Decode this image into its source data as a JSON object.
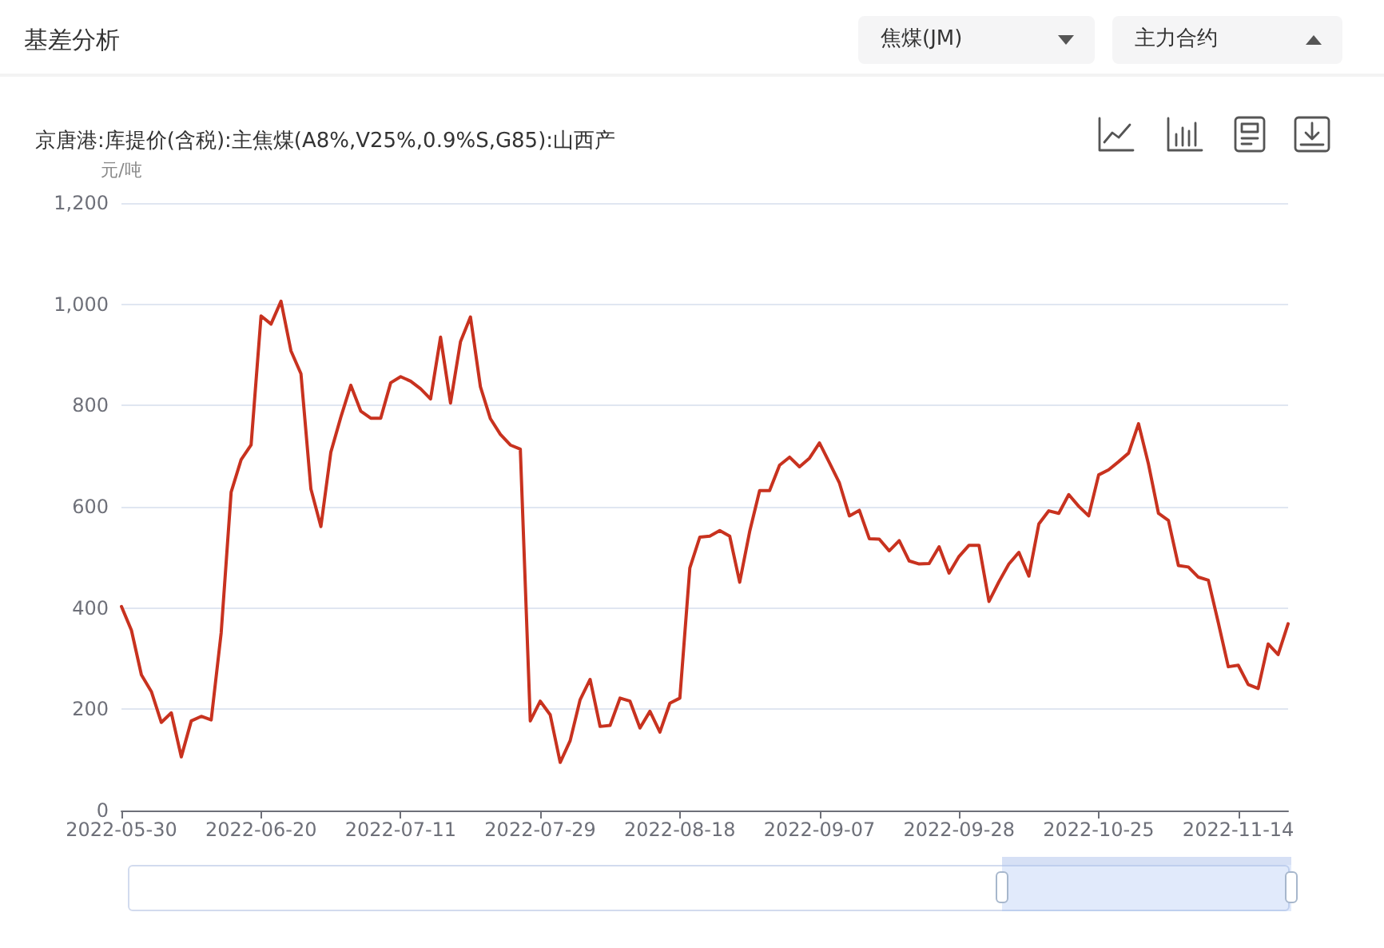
{
  "chart_data": {
    "type": "line",
    "title": "基差分析",
    "subtitle": "京唐港:库提价(含税):主焦煤(A8%,V25%,0.9%S,G85):山西产",
    "ylabel": "元/吨",
    "annotations": [
      "焦煤(JM)",
      "主力合约"
    ],
    "categories": [
      "2022-05-30",
      null,
      null,
      null,
      null,
      null,
      null,
      null,
      null,
      null,
      null,
      null,
      null,
      null,
      "2022-06-20",
      null,
      null,
      null,
      null,
      null,
      null,
      null,
      null,
      null,
      null,
      null,
      null,
      null,
      "2022-07-11",
      null,
      null,
      null,
      null,
      null,
      null,
      null,
      null,
      null,
      null,
      null,
      null,
      null,
      "2022-07-29",
      null,
      null,
      null,
      null,
      null,
      null,
      null,
      null,
      null,
      null,
      null,
      null,
      null,
      "2022-08-18",
      null,
      null,
      null,
      null,
      null,
      null,
      null,
      null,
      null,
      null,
      null,
      null,
      null,
      "2022-09-07",
      null,
      null,
      null,
      null,
      null,
      null,
      null,
      null,
      null,
      null,
      null,
      null,
      null,
      "2022-09-28",
      null,
      null,
      null,
      null,
      null,
      null,
      null,
      null,
      null,
      null,
      null,
      null,
      null,
      "2022-10-25",
      null,
      null,
      null,
      null,
      null,
      null,
      null,
      null,
      null,
      null,
      null,
      null,
      null,
      "2022-11-14",
      null,
      null,
      null,
      null,
      null
    ],
    "values": [
      403,
      356,
      268,
      235,
      174,
      193,
      106,
      177,
      186,
      179,
      351,
      629,
      693,
      722,
      977,
      961,
      1006,
      908,
      863,
      635,
      561,
      708,
      777,
      840,
      789,
      775,
      775,
      845,
      857,
      848,
      833,
      813,
      935,
      805,
      926,
      975,
      837,
      774,
      743,
      722,
      714,
      177,
      216,
      189,
      95,
      138,
      219,
      259,
      166,
      168,
      222,
      216,
      163,
      196,
      155,
      212,
      222,
      479,
      540,
      542,
      553,
      542,
      451,
      551,
      632,
      632,
      682,
      698,
      679,
      696,
      726,
      687,
      647,
      582,
      593,
      537,
      536,
      513,
      533,
      493,
      487,
      488,
      521,
      469,
      502,
      524,
      524,
      413,
      452,
      487,
      510,
      463,
      566,
      592,
      587,
      624,
      601,
      582,
      663,
      673,
      689,
      706,
      764,
      684,
      587,
      573,
      484,
      481,
      461,
      455,
      371,
      284,
      287,
      249,
      241,
      329,
      308,
      369
    ],
    "color": "#c8321f",
    "ylim": [
      0,
      1200
    ],
    "yticks": [
      0,
      200,
      400,
      600,
      800,
      {
        "value": 1000,
        "label": "1,000"
      },
      {
        "value": 1200,
        "label": "1,200"
      }
    ],
    "grid": "y",
    "marker": "none",
    "line_style": "solid"
  }
}
